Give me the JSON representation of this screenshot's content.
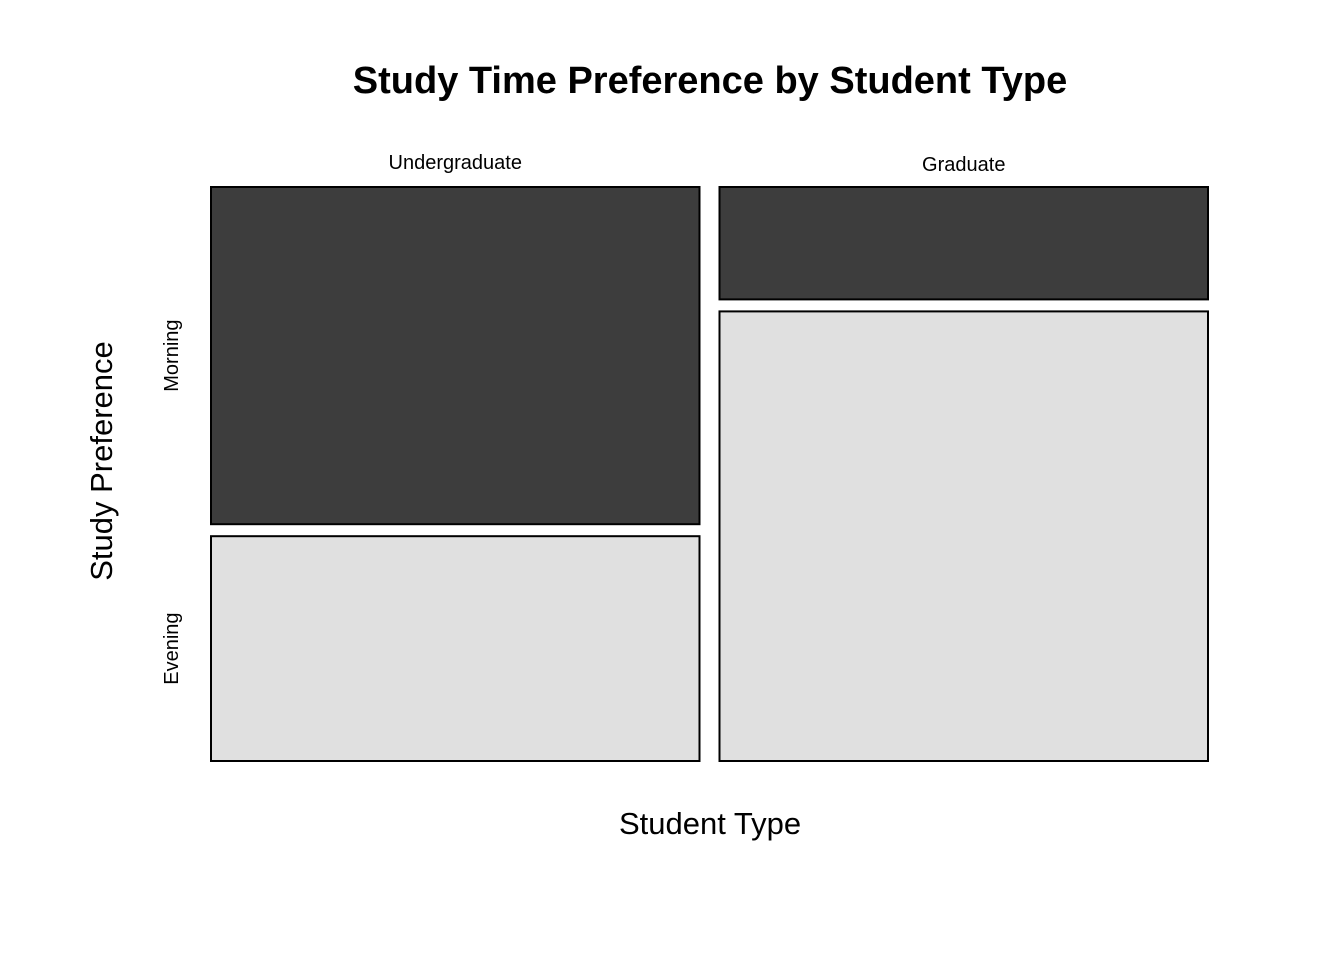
{
  "chart_data": {
    "type": "mosaic",
    "title": "Study Time Preference by Student Type",
    "xlabel": "Student Type",
    "ylabel": "Study Preference",
    "categories": [
      "Undergraduate",
      "Graduate"
    ],
    "levels": [
      "Morning",
      "Evening"
    ],
    "column_widths": [
      0.5,
      0.5
    ],
    "proportions": [
      {
        "category": "Undergraduate",
        "Morning": 0.6,
        "Evening": 0.4
      },
      {
        "category": "Graduate",
        "Morning": 0.2,
        "Evening": 0.8
      }
    ],
    "colors": {
      "Morning": "#3d3d3d",
      "Evening": "#e0e0e0"
    },
    "grid": false,
    "legend": "none"
  }
}
